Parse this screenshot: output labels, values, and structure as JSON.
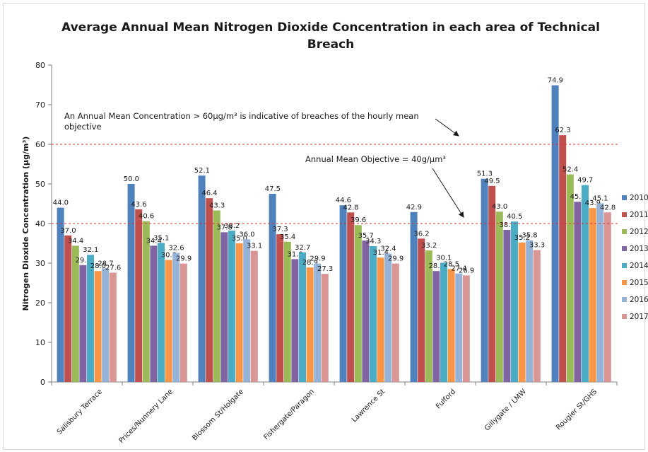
{
  "chart_data": {
    "type": "bar",
    "title": "Average Annual Mean Nitrogen Dioxide Concentration in each area of Technical Breach",
    "title_lines": [
      "Average Annual Mean Nitrogen Dioxide Concentration in each area of Technical",
      "Breach"
    ],
    "ylabel": "Nitrogen Dioxide Concentration (µg/m³)",
    "xlabel": "",
    "ylim": [
      0,
      80
    ],
    "yticks": [
      0,
      10,
      20,
      30,
      40,
      50,
      60,
      70,
      80
    ],
    "grid": false,
    "legend_position": "right",
    "categories": [
      "Salisbury Terrace",
      "Prices/Nunnery Lane",
      "Blossom St/Holgate",
      "Fishergate/Paragon",
      "Lawrence St",
      "Fulford",
      "Gillygate / LMW",
      "Rougier St/GHS"
    ],
    "series": [
      {
        "name": "2010",
        "color": "#4f81bd",
        "values": [
          44.0,
          50.0,
          52.1,
          47.5,
          44.6,
          42.9,
          51.3,
          74.9
        ]
      },
      {
        "name": "2011",
        "color": "#c0504d",
        "values": [
          37.0,
          43.6,
          46.4,
          37.3,
          42.8,
          36.2,
          49.5,
          62.3
        ]
      },
      {
        "name": "2012",
        "color": "#9bbb59",
        "values": [
          34.4,
          40.6,
          43.3,
          35.4,
          39.6,
          33.2,
          43.0,
          52.4
        ]
      },
      {
        "name": "2013",
        "color": "#8064a2",
        "values": [
          29.5,
          34.4,
          37.8,
          31.0,
          35.7,
          28.0,
          38.4,
          45.5
        ]
      },
      {
        "name": "2014",
        "color": "#4bacc6",
        "values": [
          32.1,
          35.1,
          38.2,
          32.7,
          34.3,
          30.1,
          40.5,
          49.7
        ]
      },
      {
        "name": "2015",
        "color": "#f79646",
        "values": [
          28.0,
          30.8,
          35.0,
          28.9,
          31.4,
          28.5,
          35.2,
          43.9
        ]
      },
      {
        "name": "2016",
        "color": "#95b3d7",
        "values": [
          28.7,
          32.6,
          36.0,
          29.9,
          32.4,
          27.4,
          35.8,
          45.1
        ]
      },
      {
        "name": "2017",
        "color": "#d99694",
        "values": [
          27.6,
          29.9,
          33.1,
          27.3,
          29.9,
          26.9,
          33.3,
          42.8
        ]
      }
    ],
    "reference_lines": [
      {
        "value": 60,
        "color": "#e03030",
        "style": "dashed"
      },
      {
        "value": 40,
        "color": "#e03030",
        "style": "dashed"
      }
    ],
    "annotations": [
      {
        "id": "a60",
        "lines": [
          "An Annual Mean Concentration > 60µg/m³ is indicative of breaches of the hourly mean",
          "objective"
        ]
      },
      {
        "id": "a40",
        "lines": [
          "Annual Mean Objective = 40g/µm³"
        ]
      }
    ]
  }
}
